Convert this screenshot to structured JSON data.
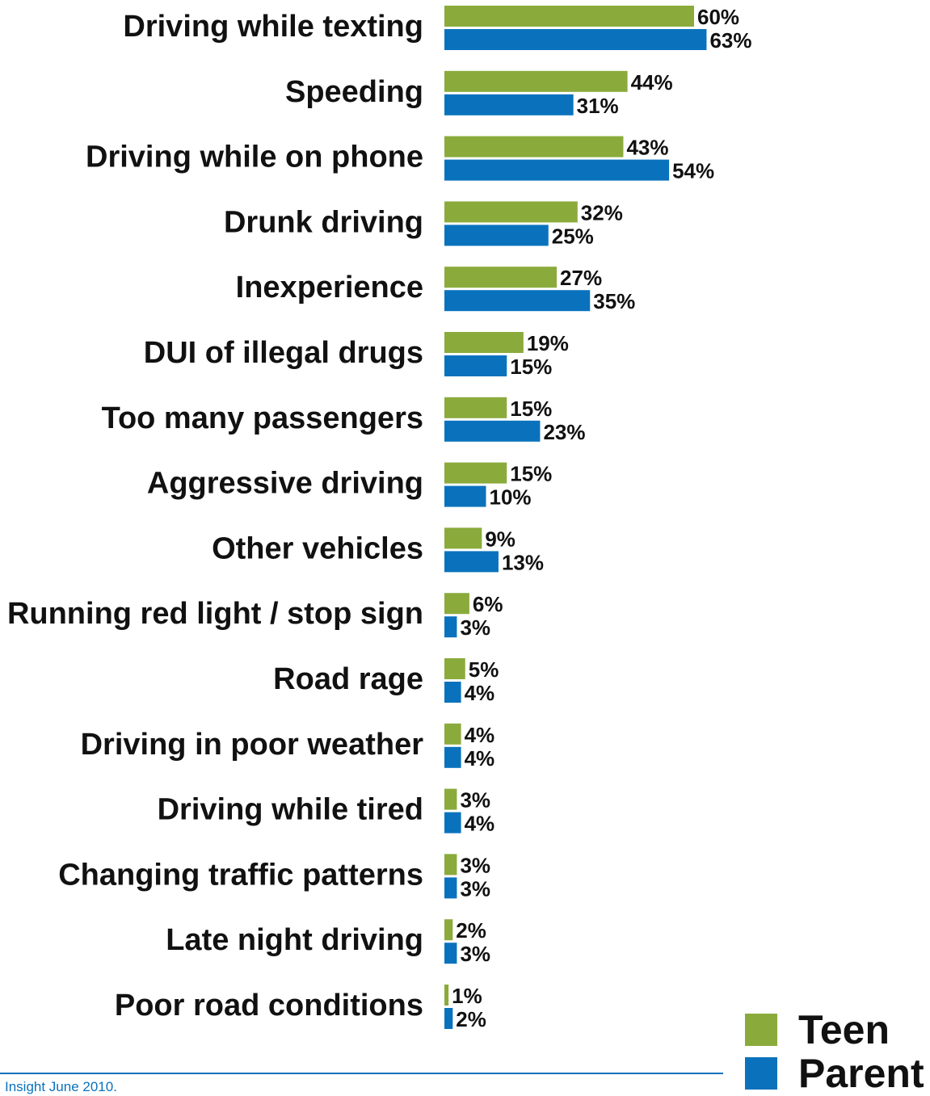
{
  "colors": {
    "teen": "#8aab3c",
    "parent": "#0a72bd",
    "footer": "#0a72bd"
  },
  "chart_data": {
    "type": "bar",
    "orientation": "horizontal",
    "categories": [
      "Driving while texting",
      "Speeding",
      "Driving while on phone",
      "Drunk driving",
      "Inexperience",
      "DUI of illegal drugs",
      "Too many passengers",
      "Aggressive driving",
      "Other vehicles",
      "Running red light / stop sign",
      "Road rage",
      "Driving in poor weather",
      "Driving while tired",
      "Changing traffic patterns",
      "Late night driving",
      "Poor road conditions"
    ],
    "series": [
      {
        "name": "Teen",
        "values": [
          60,
          44,
          43,
          32,
          27,
          19,
          15,
          15,
          9,
          6,
          5,
          4,
          3,
          3,
          2,
          1
        ]
      },
      {
        "name": "Parent",
        "values": [
          63,
          31,
          54,
          25,
          35,
          15,
          23,
          10,
          13,
          3,
          4,
          4,
          4,
          3,
          3,
          2
        ]
      }
    ],
    "value_suffix": "%",
    "xlim": [
      0,
      100
    ],
    "grid": false,
    "legend_position": "bottom-right"
  },
  "footer": {
    "note": "Insight June 2010."
  }
}
